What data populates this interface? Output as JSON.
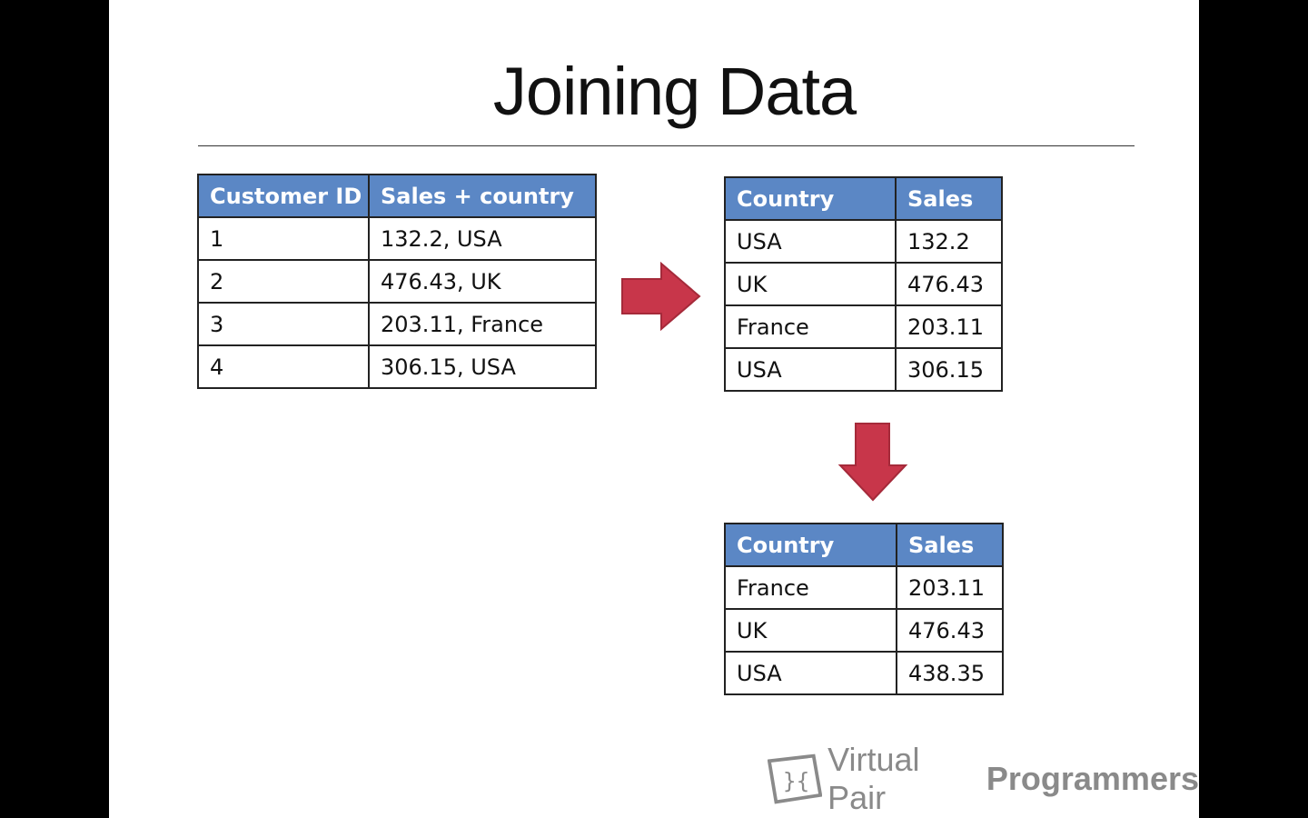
{
  "slide": {
    "title": "Joining Data"
  },
  "table_source": {
    "headers": [
      "Customer ID",
      "Sales + country"
    ],
    "rows": [
      [
        "1",
        "132.2, USA"
      ],
      [
        "2",
        "476.43, UK"
      ],
      [
        "3",
        "203.11, France"
      ],
      [
        "4",
        "306.15, USA"
      ]
    ]
  },
  "table_mapped": {
    "headers": [
      "Country",
      "Sales"
    ],
    "rows": [
      [
        "USA",
        "132.2"
      ],
      [
        "UK",
        "476.43"
      ],
      [
        "France",
        "203.11"
      ],
      [
        "USA",
        "306.15"
      ]
    ]
  },
  "table_reduced": {
    "headers": [
      "Country",
      "Sales"
    ],
    "rows": [
      [
        "France",
        "203.11"
      ],
      [
        "UK",
        "476.43"
      ],
      [
        "USA",
        "438.35"
      ]
    ]
  },
  "logo": {
    "word1": "Virtual Pair",
    "word2": "Programmers"
  },
  "colors": {
    "header_fill": "#5b87c5",
    "arrow_fill": "#c8364a",
    "arrow_stroke": "#a52a3a"
  }
}
